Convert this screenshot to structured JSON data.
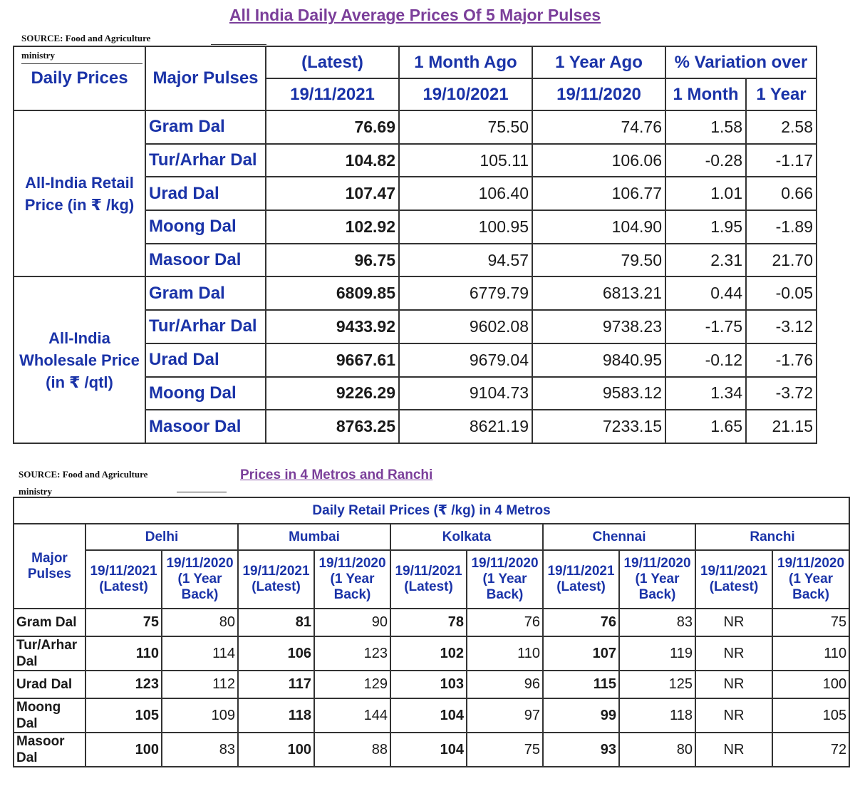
{
  "title": "All India Daily Average Prices Of 5 Major Pulses",
  "source_line1": "SOURCE: Food and Agriculture",
  "source_line2": "ministry",
  "table1": {
    "headers": {
      "daily_prices": "Daily Prices",
      "major_pulses": "Major Pulses",
      "latest": "(Latest)",
      "month_ago": "1 Month Ago",
      "year_ago": "1 Year Ago",
      "variation": "% Variation over",
      "latest_date": "19/11/2021",
      "month_ago_date": "19/10/2021",
      "year_ago_date": "19/11/2020",
      "var_month": "1 Month",
      "var_year": "1 Year"
    },
    "groups": [
      {
        "label": "All-India Retail Price (in ₹ /kg)",
        "rows": [
          {
            "pulse": "Gram Dal",
            "latest": "76.69",
            "month_ago": "75.50",
            "year_ago": "74.76",
            "var_month": "1.58",
            "var_year": "2.58"
          },
          {
            "pulse": "Tur/Arhar Dal",
            "latest": "104.82",
            "month_ago": "105.11",
            "year_ago": "106.06",
            "var_month": "-0.28",
            "var_year": "-1.17"
          },
          {
            "pulse": "Urad Dal",
            "latest": "107.47",
            "month_ago": "106.40",
            "year_ago": "106.77",
            "var_month": "1.01",
            "var_year": "0.66"
          },
          {
            "pulse": "Moong Dal",
            "latest": "102.92",
            "month_ago": "100.95",
            "year_ago": "104.90",
            "var_month": "1.95",
            "var_year": "-1.89"
          },
          {
            "pulse": "Masoor Dal",
            "latest": "96.75",
            "month_ago": "94.57",
            "year_ago": "79.50",
            "var_month": "2.31",
            "var_year": "21.70"
          }
        ]
      },
      {
        "label": "All-India Wholesale Price (in ₹ /qtl)",
        "rows": [
          {
            "pulse": "Gram Dal",
            "latest": "6809.85",
            "month_ago": "6779.79",
            "year_ago": "6813.21",
            "var_month": "0.44",
            "var_year": "-0.05"
          },
          {
            "pulse": "Tur/Arhar Dal",
            "latest": "9433.92",
            "month_ago": "9602.08",
            "year_ago": "9738.23",
            "var_month": "-1.75",
            "var_year": "-3.12"
          },
          {
            "pulse": "Urad Dal",
            "latest": "9667.61",
            "month_ago": "9679.04",
            "year_ago": "9840.95",
            "var_month": "-0.12",
            "var_year": "-1.76"
          },
          {
            "pulse": "Moong Dal",
            "latest": "9226.29",
            "month_ago": "9104.73",
            "year_ago": "9583.12",
            "var_month": "1.34",
            "var_year": "-3.72"
          },
          {
            "pulse": "Masoor Dal",
            "latest": "8763.25",
            "month_ago": "8621.19",
            "year_ago": "7233.15",
            "var_month": "1.65",
            "var_year": "21.15"
          }
        ]
      }
    ]
  },
  "title2": "Prices in 4 Metros and Ranchi",
  "table2": {
    "heading": "Daily Retail Prices (₹ /kg) in 4 Metros",
    "major_pulses": "Major Pulses",
    "cities": [
      "Delhi",
      "Mumbai",
      "Kolkata",
      "Chennai",
      "Ranchi"
    ],
    "sub_latest": "19/11/2021 (Latest)",
    "sub_back": "19/11/2020 (1 Year Back)",
    "rows": [
      {
        "pulse": "Gram Dal",
        "values": [
          "75",
          "80",
          "81",
          "90",
          "78",
          "76",
          "76",
          "83",
          "NR",
          "75"
        ]
      },
      {
        "pulse": "Tur/Arhar Dal",
        "values": [
          "110",
          "114",
          "106",
          "123",
          "102",
          "110",
          "107",
          "119",
          "NR",
          "110"
        ]
      },
      {
        "pulse": "Urad Dal",
        "values": [
          "123",
          "112",
          "117",
          "129",
          "103",
          "96",
          "115",
          "125",
          "NR",
          "100"
        ]
      },
      {
        "pulse": "Moong Dal",
        "values": [
          "105",
          "109",
          "118",
          "144",
          "104",
          "97",
          "99",
          "118",
          "NR",
          "105"
        ]
      },
      {
        "pulse": "Masoor Dal",
        "values": [
          "100",
          "83",
          "100",
          "88",
          "104",
          "75",
          "93",
          "80",
          "NR",
          "72"
        ]
      }
    ]
  }
}
